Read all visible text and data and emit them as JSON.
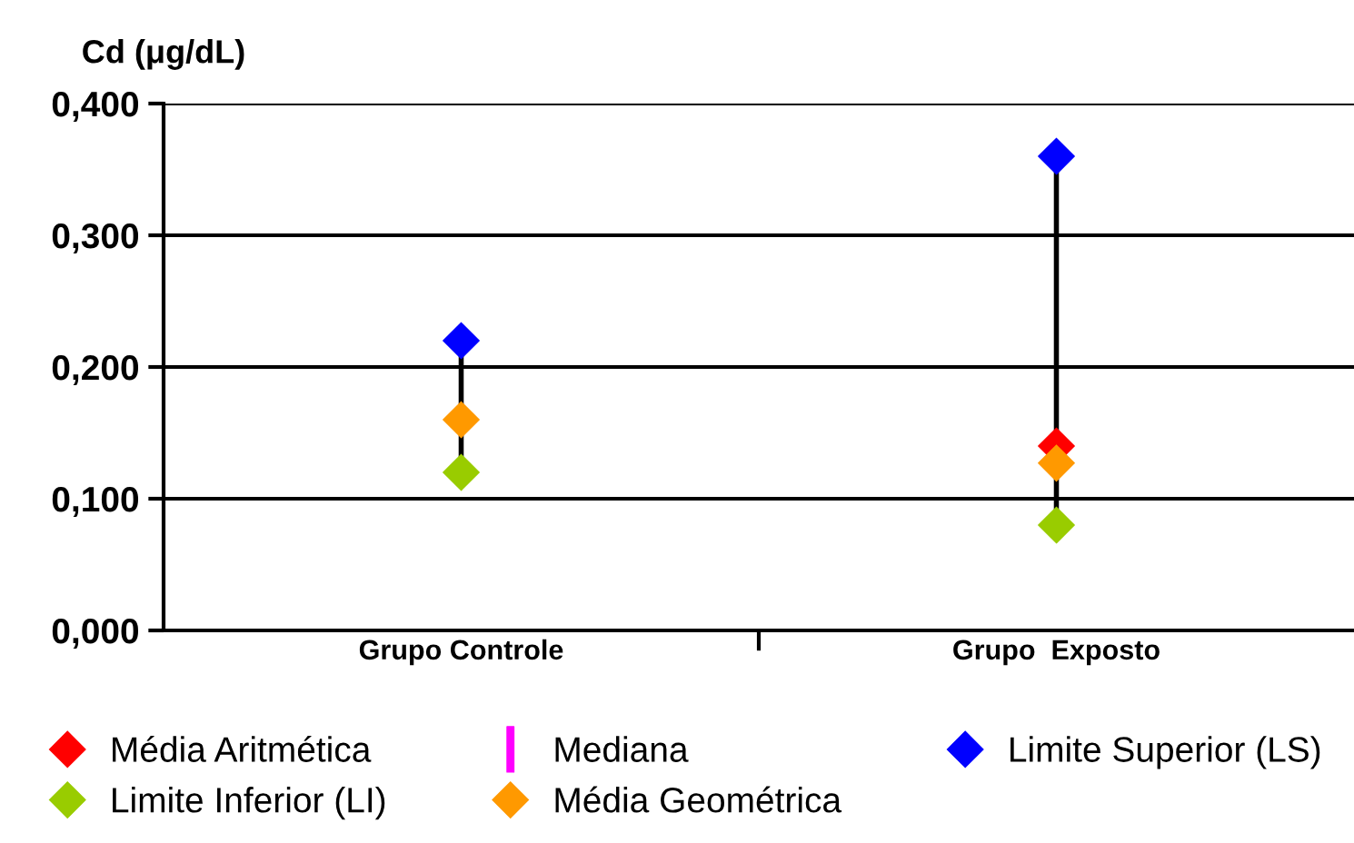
{
  "chart_data": {
    "type": "scatter",
    "ylabel": "Cd (μg/dL)",
    "categories": [
      "Grupo Controle",
      "Grupo  Exposto"
    ],
    "ylim": [
      0,
      0.4
    ],
    "yticks": [
      {
        "value": 0,
        "label": "0,000"
      },
      {
        "value": 0.1,
        "label": "0,100"
      },
      {
        "value": 0.2,
        "label": "0,200"
      },
      {
        "value": 0.3,
        "label": "0,300"
      },
      {
        "value": 0.4,
        "label": "0,400"
      }
    ],
    "grid": "y",
    "legend": "bottom",
    "series": [
      {
        "name": "Média Aritmética",
        "color": "#ff0000",
        "marker": "diamond",
        "values": [
          null,
          0.14
        ]
      },
      {
        "name": "Mediana",
        "color": "#ff00ff",
        "values": [
          null,
          null
        ]
      },
      {
        "name": "Limite Superior (LS)",
        "color": "#0000ff",
        "marker": "diamond",
        "values": [
          0.22,
          0.36
        ]
      },
      {
        "name": "Limite Inferior (LI)",
        "color": "#99cc00",
        "marker": "diamond",
        "values": [
          0.12,
          0.08
        ]
      },
      {
        "name": "Média Geométrica",
        "color": "#ff9900",
        "marker": "diamond",
        "values": [
          0.16,
          0.127
        ]
      }
    ]
  }
}
